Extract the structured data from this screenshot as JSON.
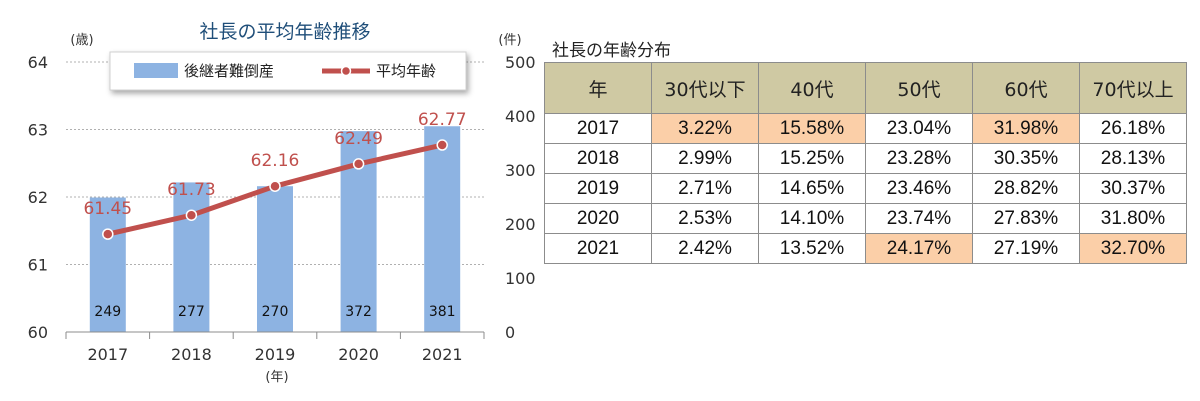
{
  "chart_data": [
    {
      "type": "bar+line",
      "title": "社長の平均年齢推移",
      "left_unit": "(歳)",
      "right_unit": "(件)",
      "x_unit": "(年)",
      "categories": [
        "2017",
        "2018",
        "2019",
        "2020",
        "2021"
      ],
      "left_axis": {
        "range": [
          60,
          64
        ],
        "ticks": [
          "60",
          "61",
          "62",
          "63",
          "64"
        ]
      },
      "right_axis": {
        "range": [
          0,
          500
        ],
        "ticks": [
          "0",
          "100",
          "200",
          "300",
          "400",
          "500"
        ]
      },
      "series": [
        {
          "name": "後継者難倒産",
          "kind": "bar",
          "axis": "right",
          "values": [
            249,
            277,
            270,
            372,
            381
          ],
          "color": "#8db3e2"
        },
        {
          "name": "平均年齢",
          "kind": "line",
          "axis": "left",
          "values": [
            61.45,
            61.73,
            62.16,
            62.49,
            62.77
          ],
          "color": "#c0504d"
        }
      ],
      "bar_labels": [
        "249",
        "277",
        "270",
        "372",
        "381"
      ],
      "line_labels": [
        "61.45",
        "61.73",
        "62.16",
        "62.49",
        "62.77"
      ],
      "grid": true,
      "legend": "top"
    },
    {
      "type": "table",
      "title": "社長の年齢分布",
      "columns": [
        "年",
        "30代以下",
        "40代",
        "50代",
        "60代",
        "70代以上"
      ],
      "rows": [
        [
          "2017",
          "3.22%",
          "15.58%",
          "23.04%",
          "31.98%",
          "26.18%"
        ],
        [
          "2018",
          "2.99%",
          "15.25%",
          "23.28%",
          "30.35%",
          "28.13%"
        ],
        [
          "2019",
          "2.71%",
          "14.65%",
          "23.46%",
          "28.82%",
          "30.37%"
        ],
        [
          "2020",
          "2.53%",
          "14.10%",
          "23.74%",
          "27.83%",
          "31.80%"
        ],
        [
          "2021",
          "2.42%",
          "13.52%",
          "24.17%",
          "27.19%",
          "32.70%"
        ]
      ],
      "highlight_cells": [
        [
          0,
          1
        ],
        [
          0,
          2
        ],
        [
          0,
          4
        ],
        [
          4,
          3
        ],
        [
          4,
          5
        ]
      ],
      "highlight_color": "#fbcfa8",
      "header_color": "#cfc9a3"
    }
  ]
}
